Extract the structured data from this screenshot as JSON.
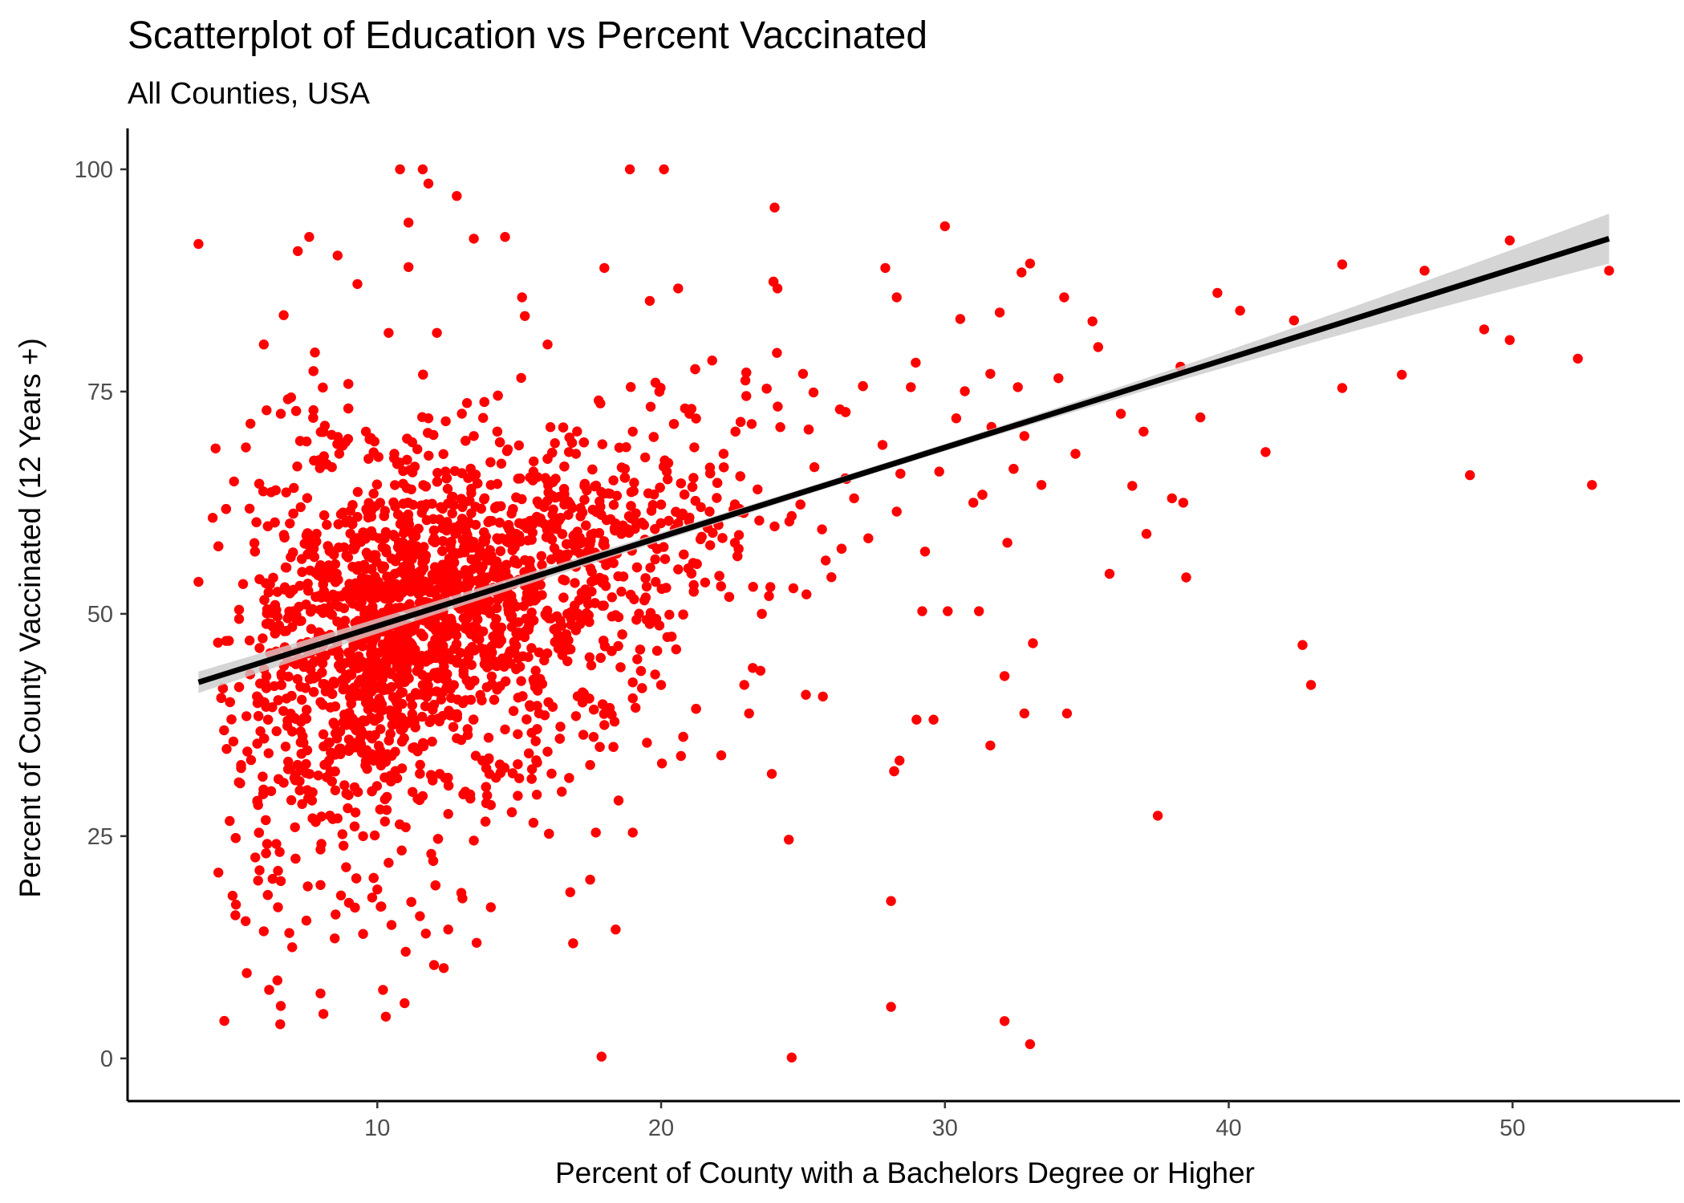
{
  "chart_data": {
    "type": "scatter",
    "title": "Scatterplot of Education vs Percent Vaccinated",
    "subtitle": "All Counties, USA",
    "xlabel": "Percent of County with a Bachelors Degree or Higher",
    "ylabel": "Percent of County Vaccinated (12 Years +)",
    "xlim": [
      1.2,
      55.9
    ],
    "ylim": [
      -4.8,
      104.6
    ],
    "xticks": [
      10,
      20,
      30,
      40,
      50
    ],
    "yticks": [
      0,
      25,
      50,
      75,
      100
    ],
    "grid": false,
    "legend": "none",
    "point_color": "#FF0000",
    "line_color": "#000000",
    "ribbon_color": "#D3D3D3",
    "trend_line": {
      "method": "linear",
      "x": [
        3.7,
        53.4
      ],
      "y": [
        42.3,
        92.2
      ],
      "ci_halfwidth_at_ends": [
        1.2,
        2.8
      ],
      "ci_halfwidth_at_center": 0.4
    },
    "point_cloud_summary": {
      "n_points_approx": 3000,
      "dense_core_x_range": [
        6,
        20
      ],
      "dense_core_y_range": [
        35,
        72
      ]
    },
    "points": [
      [
        3.7,
        91.6
      ],
      [
        3.7,
        53.6
      ],
      [
        4.2,
        60.8
      ],
      [
        4.3,
        68.6
      ],
      [
        4.4,
        20.9
      ],
      [
        4.6,
        36.9
      ],
      [
        4.8,
        26.7
      ],
      [
        4.9,
        18.3
      ],
      [
        5.0,
        16.1
      ],
      [
        5.4,
        9.6
      ],
      [
        5.7,
        22.6
      ],
      [
        5.8,
        20.0
      ],
      [
        6.0,
        14.3
      ],
      [
        6.0,
        80.3
      ],
      [
        6.1,
        72.9
      ],
      [
        6.5,
        21.1
      ],
      [
        6.6,
        5.9
      ],
      [
        6.6,
        72.5
      ],
      [
        6.7,
        83.6
      ],
      [
        6.9,
        14.1
      ],
      [
        7.2,
        90.8
      ],
      [
        7.6,
        92.4
      ],
      [
        7.8,
        79.4
      ],
      [
        8.0,
        7.3
      ],
      [
        8.1,
        5.0
      ],
      [
        8.6,
        90.3
      ],
      [
        9.3,
        87.1
      ],
      [
        10.2,
        7.7
      ],
      [
        10.3,
        4.7
      ],
      [
        10.4,
        81.6
      ],
      [
        10.8,
        100.0
      ],
      [
        11.1,
        94.0
      ],
      [
        11.1,
        89.0
      ],
      [
        11.6,
        100.0
      ],
      [
        11.8,
        98.4
      ],
      [
        12.1,
        81.6
      ],
      [
        12.8,
        97.0
      ],
      [
        13.4,
        92.2
      ],
      [
        14.5,
        92.4
      ],
      [
        15.1,
        85.6
      ],
      [
        15.2,
        83.5
      ],
      [
        16.0,
        80.3
      ],
      [
        16.8,
        18.7
      ],
      [
        17.5,
        20.1
      ],
      [
        17.7,
        25.4
      ],
      [
        17.9,
        0.2
      ],
      [
        18.0,
        88.9
      ],
      [
        18.4,
        14.5
      ],
      [
        18.9,
        100.0
      ],
      [
        19.0,
        25.4
      ],
      [
        19.6,
        85.2
      ],
      [
        20.1,
        100.0
      ],
      [
        20.6,
        86.6
      ],
      [
        23.1,
        38.8
      ],
      [
        23.5,
        43.6
      ],
      [
        23.9,
        32.0
      ],
      [
        24.0,
        95.7
      ],
      [
        24.1,
        86.6
      ],
      [
        24.5,
        24.6
      ],
      [
        24.6,
        0.1
      ],
      [
        25.1,
        40.9
      ],
      [
        25.7,
        40.7
      ],
      [
        27.9,
        88.9
      ],
      [
        28.1,
        5.8
      ],
      [
        28.1,
        17.7
      ],
      [
        28.3,
        85.6
      ],
      [
        28.4,
        33.5
      ],
      [
        29.0,
        38.1
      ],
      [
        29.2,
        50.3
      ],
      [
        29.6,
        38.1
      ],
      [
        30.0,
        93.6
      ],
      [
        30.1,
        50.3
      ],
      [
        31.2,
        50.3
      ],
      [
        31.6,
        35.2
      ],
      [
        32.1,
        4.2
      ],
      [
        32.1,
        43.0
      ],
      [
        32.7,
        88.4
      ],
      [
        32.8,
        38.8
      ],
      [
        33.0,
        89.4
      ],
      [
        33.0,
        1.6
      ],
      [
        33.1,
        46.7
      ],
      [
        34.2,
        85.6
      ],
      [
        34.3,
        38.8
      ],
      [
        35.2,
        82.9
      ],
      [
        35.8,
        54.5
      ],
      [
        36.6,
        64.4
      ],
      [
        37.1,
        59.0
      ],
      [
        37.5,
        27.3
      ],
      [
        38.3,
        77.8
      ],
      [
        38.4,
        62.5
      ],
      [
        38.5,
        54.1
      ],
      [
        39.0,
        72.1
      ],
      [
        39.6,
        86.1
      ],
      [
        40.4,
        84.1
      ],
      [
        41.3,
        68.2
      ],
      [
        42.3,
        83.0
      ],
      [
        42.6,
        46.5
      ],
      [
        42.9,
        42.0
      ],
      [
        44.0,
        89.3
      ],
      [
        44.0,
        75.4
      ],
      [
        46.1,
        76.9
      ],
      [
        46.9,
        88.6
      ],
      [
        48.5,
        65.6
      ],
      [
        49.0,
        82.0
      ],
      [
        49.9,
        92.0
      ],
      [
        49.9,
        80.8
      ],
      [
        52.3,
        78.7
      ],
      [
        52.8,
        64.5
      ],
      [
        53.4,
        88.6
      ],
      [
        5.5,
        47.0
      ],
      [
        6.2,
        50.5
      ],
      [
        6.8,
        55.2
      ],
      [
        7.0,
        44.6
      ],
      [
        7.3,
        62.0
      ],
      [
        7.5,
        38.2
      ],
      [
        7.8,
        58.0
      ],
      [
        8.1,
        46.5
      ],
      [
        8.4,
        66.5
      ],
      [
        8.6,
        52.0
      ],
      [
        8.8,
        41.5
      ],
      [
        9.0,
        60.5
      ],
      [
        9.2,
        48.0
      ],
      [
        9.4,
        36.0
      ],
      [
        9.6,
        70.5
      ],
      [
        9.8,
        55.0
      ],
      [
        10.0,
        44.0
      ],
      [
        10.1,
        62.5
      ],
      [
        10.3,
        50.0
      ],
      [
        10.5,
        38.5
      ],
      [
        10.6,
        68.0
      ],
      [
        10.8,
        56.5
      ],
      [
        11.0,
        46.0
      ],
      [
        11.2,
        64.0
      ],
      [
        11.4,
        52.5
      ],
      [
        11.6,
        42.0
      ],
      [
        11.8,
        72.0
      ],
      [
        12.0,
        58.5
      ],
      [
        12.2,
        48.5
      ],
      [
        12.4,
        66.0
      ],
      [
        12.6,
        54.0
      ],
      [
        12.8,
        44.5
      ],
      [
        13.0,
        62.0
      ],
      [
        13.2,
        50.5
      ],
      [
        13.4,
        70.0
      ],
      [
        13.6,
        57.5
      ],
      [
        13.8,
        46.0
      ],
      [
        14.0,
        64.5
      ],
      [
        14.3,
        53.0
      ],
      [
        14.6,
        68.5
      ],
      [
        14.9,
        59.0
      ],
      [
        15.2,
        48.0
      ],
      [
        15.5,
        66.0
      ],
      [
        15.8,
        55.5
      ],
      [
        16.1,
        71.0
      ],
      [
        16.4,
        60.5
      ],
      [
        16.7,
        50.0
      ],
      [
        17.0,
        68.0
      ],
      [
        17.4,
        57.0
      ],
      [
        17.8,
        74.0
      ],
      [
        18.2,
        63.5
      ],
      [
        18.6,
        52.5
      ],
      [
        19.0,
        70.5
      ],
      [
        19.4,
        60.0
      ],
      [
        19.8,
        76.0
      ],
      [
        20.2,
        66.0
      ],
      [
        20.6,
        55.0
      ],
      [
        21.0,
        72.5
      ],
      [
        21.4,
        62.0
      ],
      [
        21.8,
        78.5
      ],
      [
        22.2,
        68.0
      ],
      [
        22.6,
        58.0
      ],
      [
        23.0,
        74.5
      ],
      [
        23.4,
        64.0
      ],
      [
        23.8,
        52.0
      ],
      [
        24.2,
        71.0
      ],
      [
        24.6,
        61.0
      ],
      [
        25.0,
        77.0
      ],
      [
        25.4,
        66.5
      ],
      [
        25.8,
        56.0
      ],
      [
        26.3,
        73.0
      ],
      [
        26.8,
        63.0
      ],
      [
        27.3,
        58.5
      ],
      [
        27.8,
        69.0
      ],
      [
        28.3,
        61.5
      ],
      [
        28.8,
        75.5
      ],
      [
        29.3,
        57.0
      ],
      [
        29.8,
        66.0
      ],
      [
        30.4,
        72.0
      ],
      [
        31.0,
        62.5
      ],
      [
        31.6,
        77.0
      ],
      [
        32.2,
        58.0
      ],
      [
        32.8,
        70.0
      ],
      [
        33.4,
        64.5
      ],
      [
        34.0,
        76.5
      ],
      [
        34.6,
        68.0
      ],
      [
        35.4,
        80.0
      ],
      [
        36.2,
        72.5
      ],
      [
        37.0,
        70.5
      ],
      [
        38.0,
        63.0
      ],
      [
        5.2,
        33.0
      ],
      [
        5.8,
        28.5
      ],
      [
        6.3,
        39.5
      ],
      [
        6.7,
        31.0
      ],
      [
        7.1,
        26.0
      ],
      [
        7.4,
        35.5
      ],
      [
        7.7,
        29.0
      ],
      [
        8.0,
        23.5
      ],
      [
        8.3,
        33.5
      ],
      [
        8.6,
        27.0
      ],
      [
        8.9,
        21.5
      ],
      [
        9.2,
        30.5
      ],
      [
        9.5,
        25.0
      ],
      [
        9.8,
        34.0
      ],
      [
        10.1,
        28.0
      ],
      [
        10.4,
        22.0
      ],
      [
        10.7,
        31.5
      ],
      [
        11.0,
        26.0
      ],
      [
        11.3,
        35.0
      ],
      [
        11.6,
        29.5
      ],
      [
        11.9,
        23.0
      ],
      [
        12.2,
        32.0
      ],
      [
        12.5,
        27.5
      ],
      [
        12.8,
        36.0
      ],
      [
        13.1,
        30.0
      ],
      [
        13.4,
        24.5
      ],
      [
        13.7,
        33.5
      ],
      [
        14.0,
        28.5
      ],
      [
        14.5,
        37.0
      ],
      [
        15.0,
        31.5
      ],
      [
        15.5,
        26.5
      ],
      [
        16.0,
        34.5
      ],
      [
        16.5,
        30.0
      ],
      [
        17.0,
        38.5
      ],
      [
        17.5,
        33.0
      ],
      [
        18.0,
        37.5
      ],
      [
        18.5,
        29.0
      ],
      [
        19.0,
        40.5
      ],
      [
        19.5,
        35.5
      ],
      [
        20.0,
        42.0
      ],
      [
        6.5,
        17.0
      ],
      [
        7.0,
        12.5
      ],
      [
        7.5,
        15.5
      ],
      [
        8.0,
        19.5
      ],
      [
        8.5,
        13.5
      ],
      [
        9.0,
        17.5
      ],
      [
        9.5,
        14.0
      ],
      [
        10.0,
        19.0
      ],
      [
        10.5,
        15.0
      ],
      [
        11.0,
        12.0
      ],
      [
        11.5,
        16.0
      ],
      [
        12.0,
        10.5
      ],
      [
        12.5,
        14.5
      ],
      [
        13.0,
        18.0
      ],
      [
        13.5,
        13.0
      ],
      [
        14.0,
        17.0
      ]
    ]
  }
}
